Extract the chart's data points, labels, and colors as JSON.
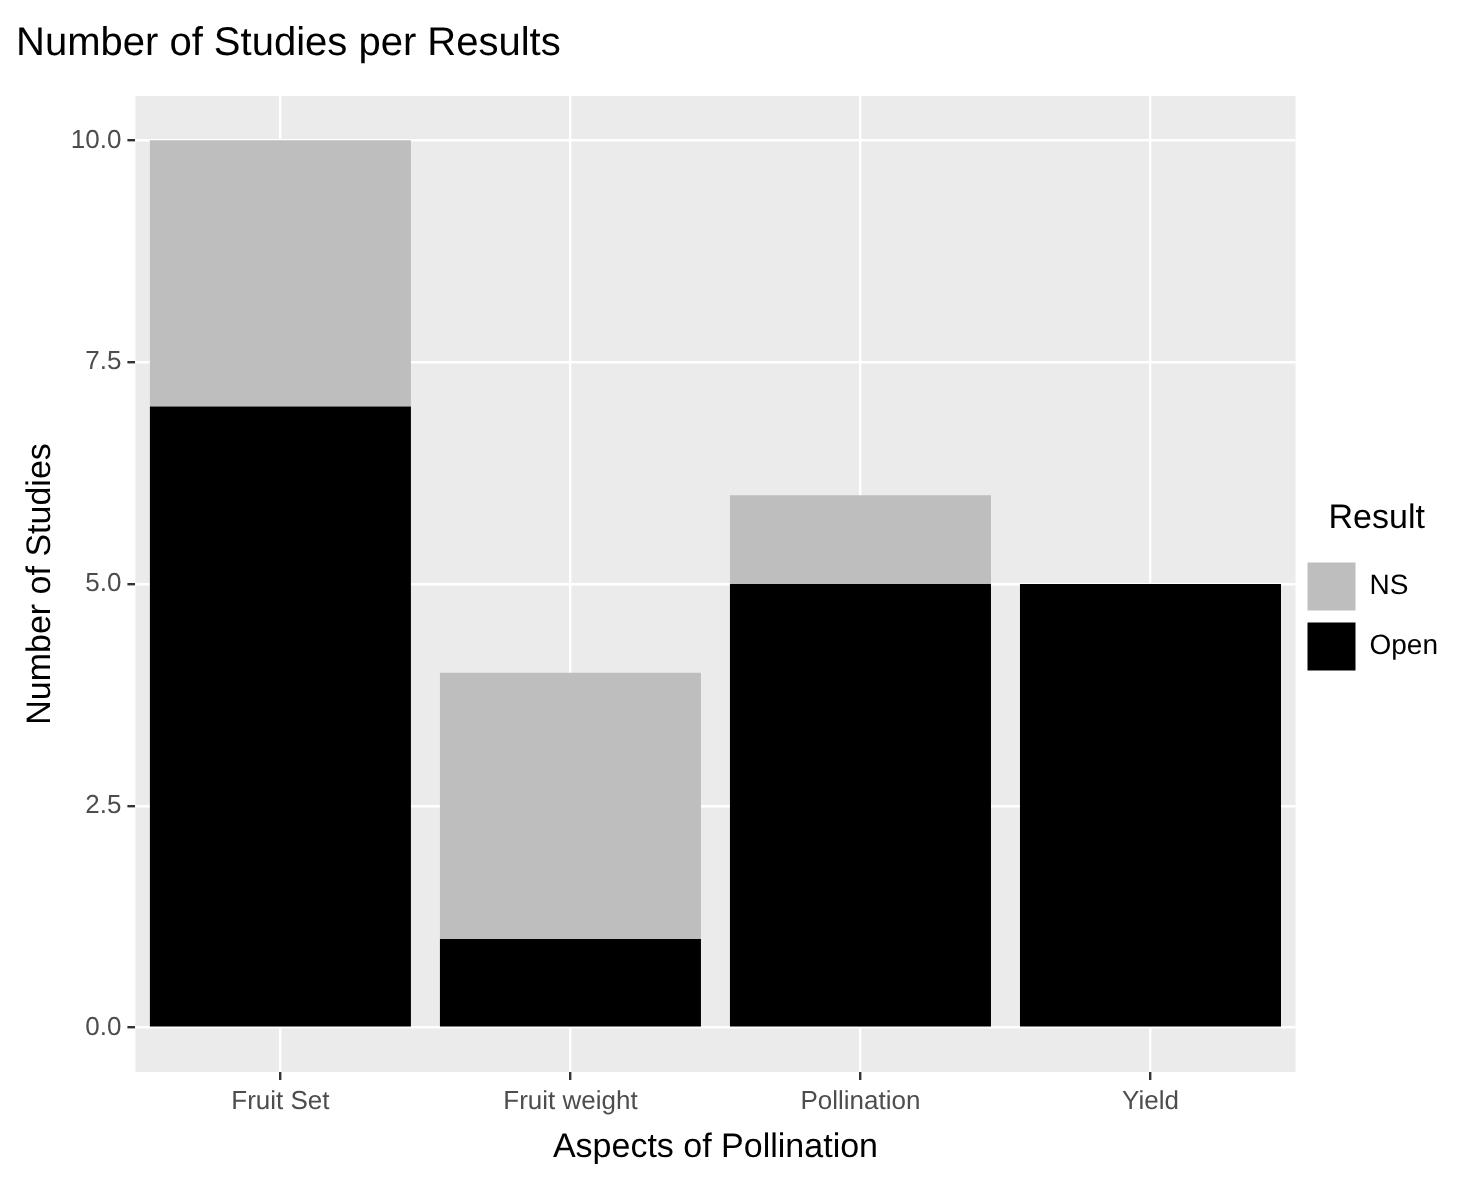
{
  "chart_data": {
    "type": "bar",
    "title": "Number of Studies per Results",
    "xlabel": "Aspects of Pollination",
    "ylabel": "Number of Studies",
    "legend_title": "Result",
    "categories": [
      "Fruit Set",
      "Fruit weight",
      "Pollination",
      "Yield"
    ],
    "series": [
      {
        "name": "Open",
        "color": "#000000",
        "values": [
          7,
          1,
          5,
          5
        ]
      },
      {
        "name": "NS",
        "color": "#bebebe",
        "values": [
          3,
          3,
          1,
          0
        ]
      }
    ],
    "stacked": true,
    "ylim": [
      -0.5,
      10.5
    ],
    "yticks": [
      {
        "value": 0,
        "label": "0.0"
      },
      {
        "value": 2.5,
        "label": "2.5"
      },
      {
        "value": 5,
        "label": "5.0"
      },
      {
        "value": 7.5,
        "label": "7.5"
      },
      {
        "value": 10,
        "label": "10.0"
      }
    ],
    "grid": true,
    "legend": "right"
  }
}
